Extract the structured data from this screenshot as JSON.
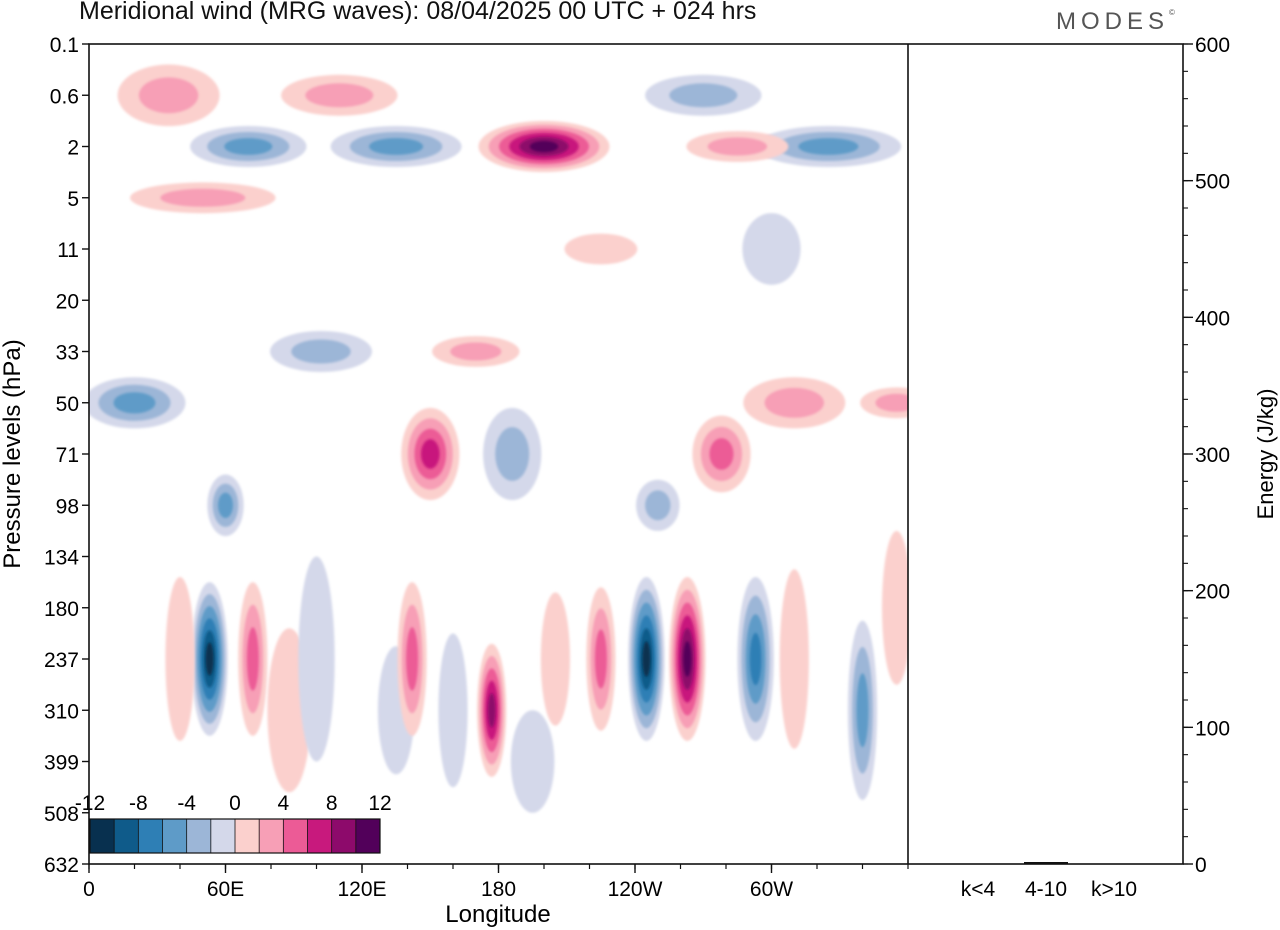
{
  "title": "Meridional wind (MRG waves):  08/04/2025  00 UTC  + 024 hrs",
  "brand": "MODES",
  "brand_mark": "©",
  "colors": {
    "neg": [
      "#08304f",
      "#0f5b8a",
      "#2e7fb5",
      "#5e9bc8",
      "#9cb6d7",
      "#d4d8ea"
    ],
    "pos": [
      "#fbd0cd",
      "#f79fb6",
      "#ec5b96",
      "#c8197d",
      "#8d0a6b",
      "#52005a"
    ]
  },
  "chart_data": [
    {
      "type": "heatmap",
      "xlabel": "Longitude",
      "ylabel": "Pressure levels (hPa)",
      "x_ticks": [
        "0",
        "60E",
        "120E",
        "180",
        "120W",
        "60W"
      ],
      "y_ticks": [
        "0.1",
        "0.6",
        "2",
        "5",
        "11",
        "20",
        "33",
        "50",
        "71",
        "98",
        "134",
        "180",
        "237",
        "310",
        "399",
        "508",
        "632"
      ],
      "colorbar": {
        "labels": [
          "-12",
          "-8",
          "-4",
          "0",
          "4",
          "8",
          "12"
        ],
        "levels": [
          -12,
          -10,
          -8,
          -6,
          -4,
          -2,
          0,
          2,
          4,
          6,
          8,
          10,
          12
        ]
      },
      "features": [
        {
          "lon": 53,
          "level": "237",
          "v": -13,
          "lw": 5,
          "lh": 3.0
        },
        {
          "lon": 40,
          "level": "237",
          "v": 3,
          "lw": 4,
          "lh": 3.2
        },
        {
          "lon": 72,
          "level": "237",
          "v": 6,
          "lw": 4,
          "lh": 3.0
        },
        {
          "lon": 88,
          "level": "310",
          "v": 2,
          "lw": 6,
          "lh": 3.2
        },
        {
          "lon": 100,
          "level": "237",
          "v": -2,
          "lw": 5,
          "lh": 4.0
        },
        {
          "lon": 135,
          "level": "310",
          "v": -2,
          "lw": 5,
          "lh": 2.5
        },
        {
          "lon": 142,
          "level": "237",
          "v": 6,
          "lw": 4,
          "lh": 3.0
        },
        {
          "lon": 160,
          "level": "310",
          "v": -2,
          "lw": 4,
          "lh": 3.0
        },
        {
          "lon": 177,
          "level": "310",
          "v": 10,
          "lw": 4,
          "lh": 2.6
        },
        {
          "lon": 195,
          "level": "399",
          "v": -2,
          "lw": 6,
          "lh": 2.0
        },
        {
          "lon": 205,
          "level": "237",
          "v": 3,
          "lw": 4,
          "lh": 2.6
        },
        {
          "lon": 225,
          "level": "237",
          "v": 6,
          "lw": 4,
          "lh": 2.8
        },
        {
          "lon": 245,
          "level": "237",
          "v": -13,
          "lw": 5,
          "lh": 3.2
        },
        {
          "lon": 263,
          "level": "237",
          "v": 12,
          "lw": 5,
          "lh": 3.2
        },
        {
          "lon": 293,
          "level": "237",
          "v": -8,
          "lw": 5,
          "lh": 3.2
        },
        {
          "lon": 310,
          "level": "237",
          "v": 2,
          "lw": 4,
          "lh": 3.5
        },
        {
          "lon": 340,
          "level": "310",
          "v": -6,
          "lw": 4,
          "lh": 3.5
        },
        {
          "lon": 355,
          "level": "180",
          "v": 3,
          "lw": 4,
          "lh": 3.0
        },
        {
          "lon": 60,
          "level": "98",
          "v": -6,
          "lw": 5,
          "lh": 1.2
        },
        {
          "lon": 150,
          "level": "71",
          "v": 9,
          "lw": 8,
          "lh": 1.8
        },
        {
          "lon": 186,
          "level": "71",
          "v": -5,
          "lw": 8,
          "lh": 1.8
        },
        {
          "lon": 250,
          "level": "98",
          "v": -5,
          "lw": 6,
          "lh": 1.0
        },
        {
          "lon": 278,
          "level": "71",
          "v": 6,
          "lw": 8,
          "lh": 1.5
        },
        {
          "lon": 20,
          "level": "50",
          "v": -6,
          "lw": 14,
          "lh": 1.0
        },
        {
          "lon": 102,
          "level": "33",
          "v": -5,
          "lw": 14,
          "lh": 0.8
        },
        {
          "lon": 170,
          "level": "33",
          "v": 4,
          "lw": 12,
          "lh": 0.6
        },
        {
          "lon": 310,
          "level": "50",
          "v": 5,
          "lw": 14,
          "lh": 1.0
        },
        {
          "lon": 355,
          "level": "50",
          "v": 4,
          "lw": 10,
          "lh": 0.6
        },
        {
          "lon": 35,
          "level": "0.6",
          "v": 5,
          "lw": 14,
          "lh": 1.2
        },
        {
          "lon": 70,
          "level": "2",
          "v": -6,
          "lw": 16,
          "lh": 0.8
        },
        {
          "lon": 110,
          "level": "0.6",
          "v": 5,
          "lw": 16,
          "lh": 0.8
        },
        {
          "lon": 135,
          "level": "2",
          "v": -6,
          "lw": 18,
          "lh": 0.8
        },
        {
          "lon": 200,
          "level": "2",
          "v": 12,
          "lw": 18,
          "lh": 1.0
        },
        {
          "lon": 270,
          "level": "0.6",
          "v": -4,
          "lw": 16,
          "lh": 0.8
        },
        {
          "lon": 325,
          "level": "2",
          "v": -7,
          "lw": 20,
          "lh": 0.8
        },
        {
          "lon": 50,
          "level": "5",
          "v": 5,
          "lw": 20,
          "lh": 0.6
        },
        {
          "lon": 285,
          "level": "2",
          "v": 4,
          "lw": 14,
          "lh": 0.6
        },
        {
          "lon": 300,
          "level": "11",
          "v": -3,
          "lw": 8,
          "lh": 1.4
        },
        {
          "lon": 225,
          "level": "11",
          "v": 3,
          "lw": 10,
          "lh": 0.6
        }
      ]
    },
    {
      "type": "bar",
      "categories": [
        "k<4",
        "4-10",
        "k>10"
      ],
      "values": [
        0.2,
        1.5,
        0.1
      ],
      "ylabel": "Energy (J/kg)",
      "ylim": [
        0,
        600
      ],
      "y_ticks": [
        "0",
        "100",
        "200",
        "300",
        "400",
        "500",
        "600"
      ]
    }
  ]
}
